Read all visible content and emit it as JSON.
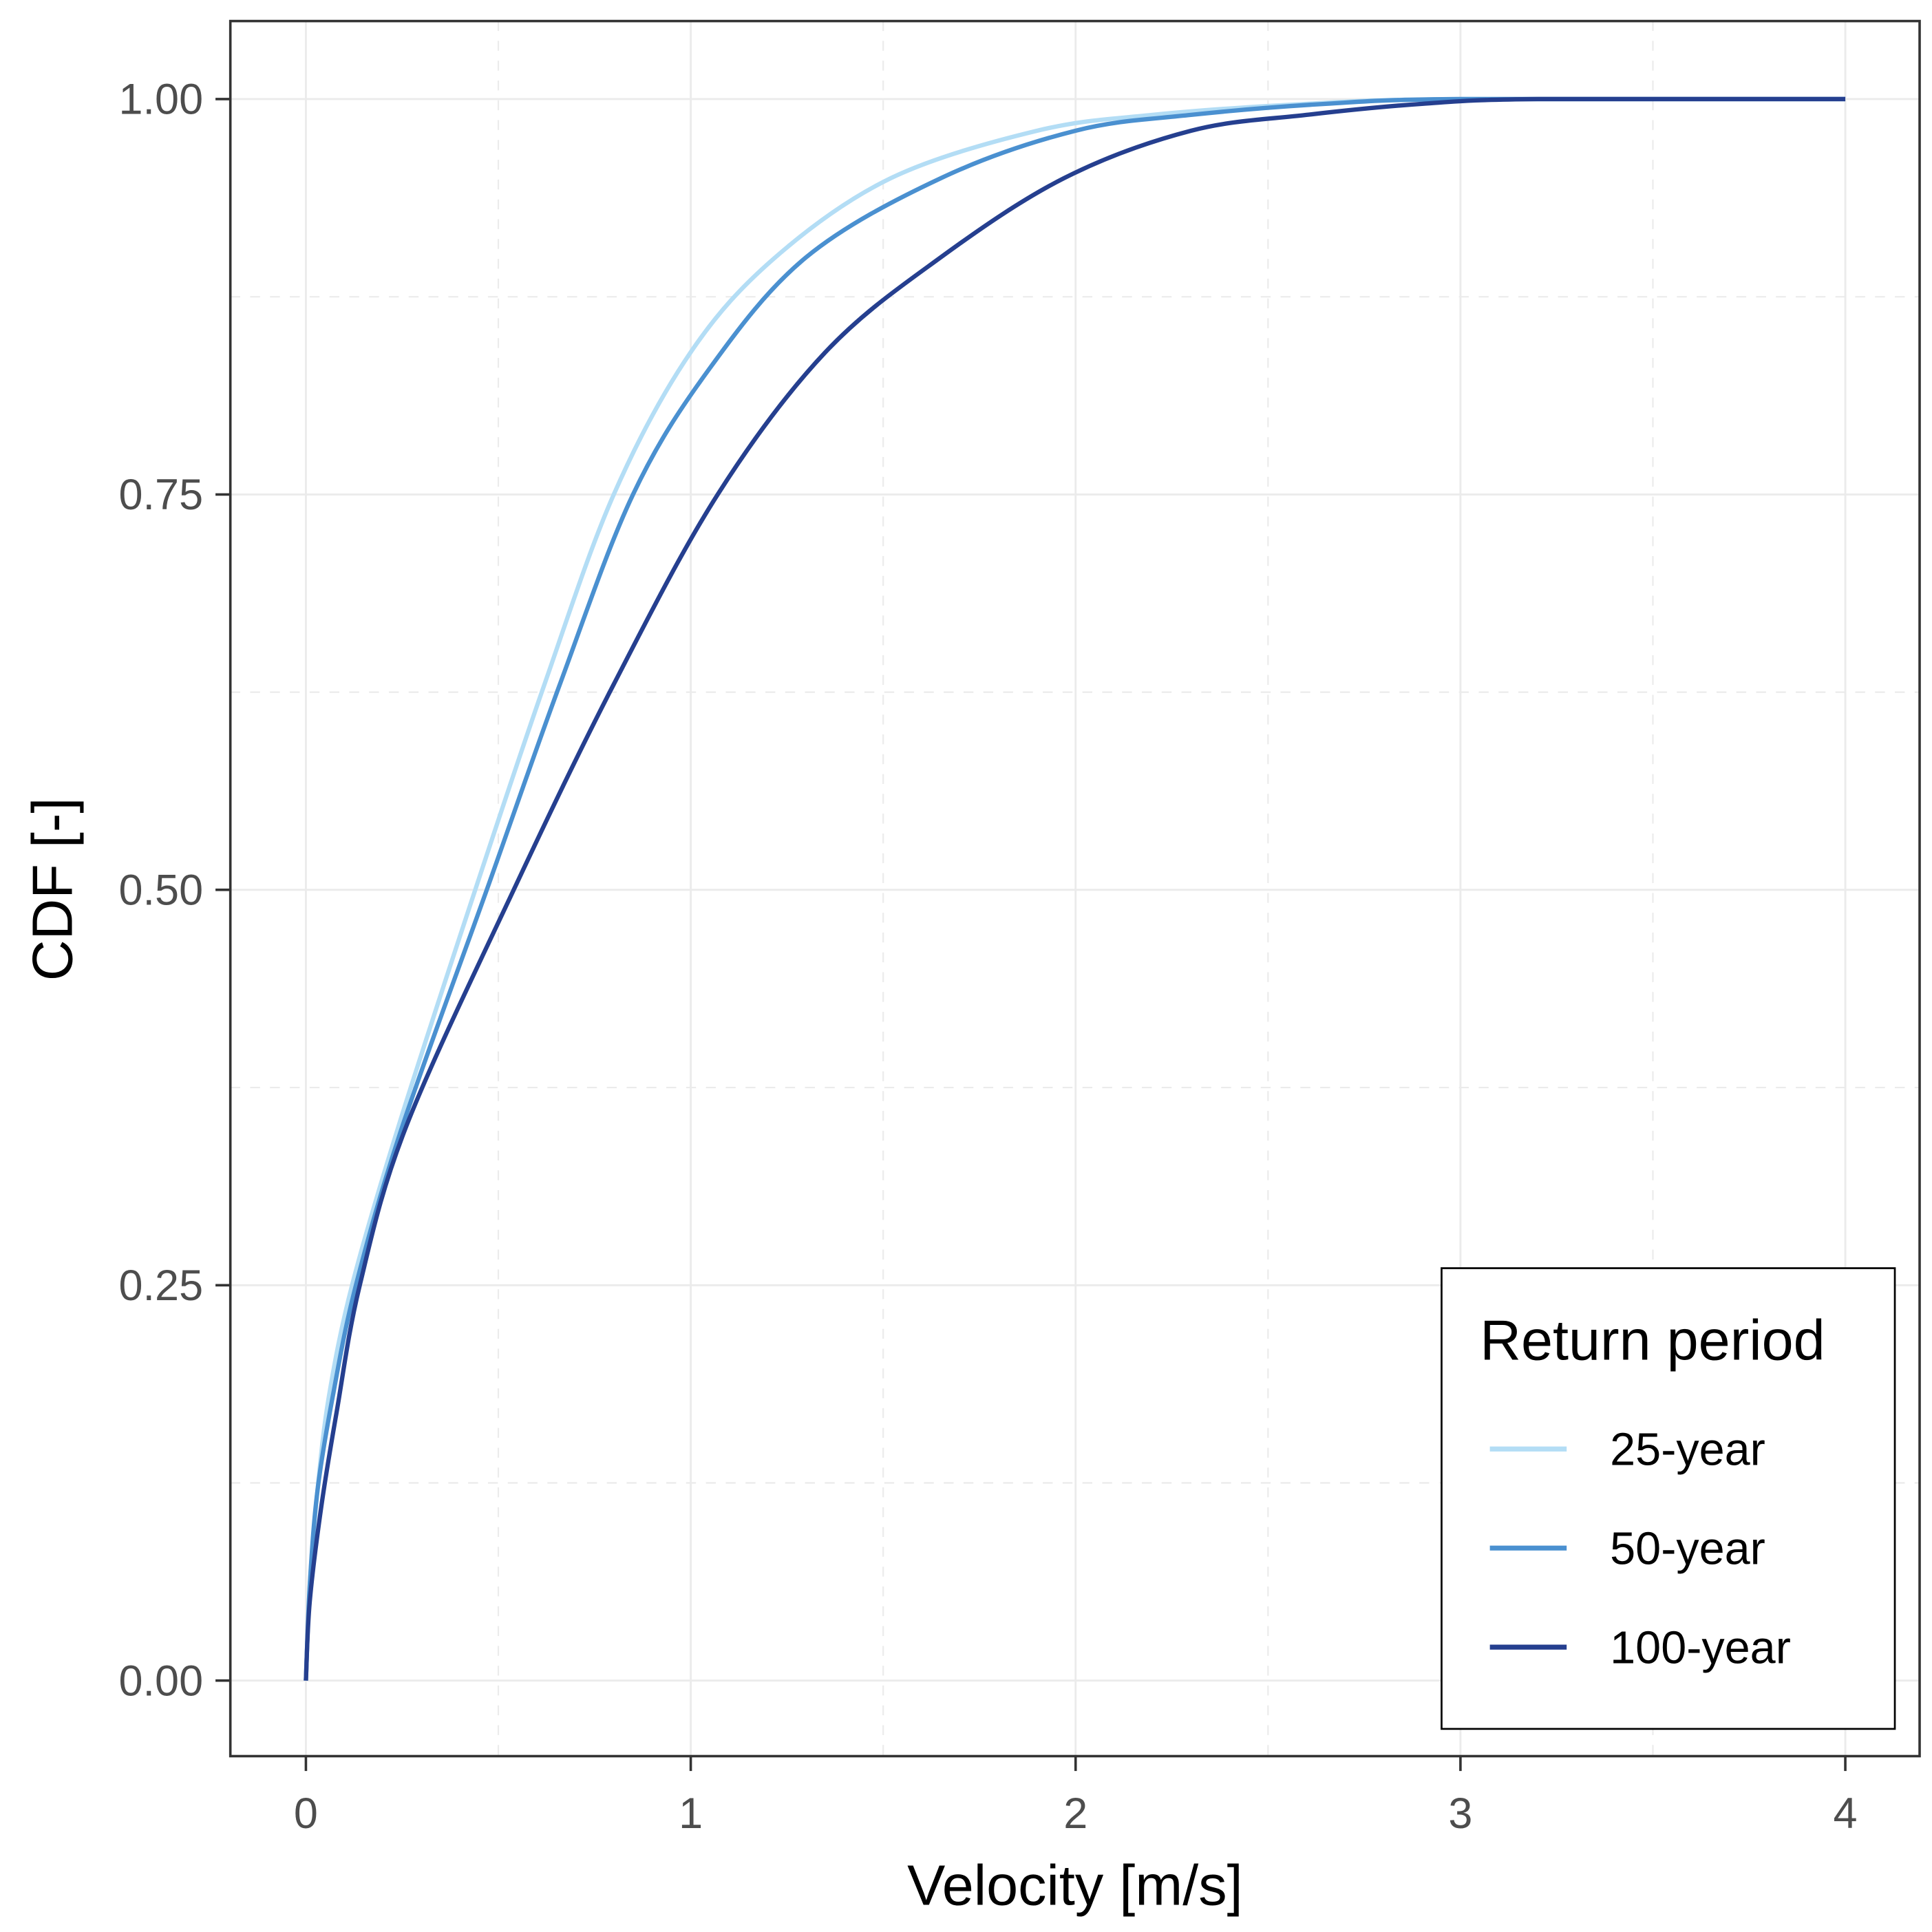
{
  "chart_data": {
    "type": "line",
    "xlabel": "Velocity [m/s]",
    "ylabel": "CDF [-]",
    "xlim": [
      -0.2,
      4.2
    ],
    "ylim": [
      -0.05,
      1.05
    ],
    "xticks": [
      "0",
      "1",
      "2",
      "3",
      "4"
    ],
    "yticks": [
      "0.00",
      "0.25",
      "0.50",
      "0.75",
      "1.00"
    ],
    "grid": true,
    "legend": {
      "title": "Return period",
      "placement": "bottom-right"
    },
    "series": [
      {
        "name": "25-year",
        "color": "#b3ddf5",
        "x": [
          0,
          0.01,
          0.03,
          0.06,
          0.12,
          0.24,
          0.44,
          0.62,
          0.8,
          1.0,
          1.22,
          1.52,
          1.9,
          2.2,
          2.6,
          3.0,
          4.0
        ],
        "y": [
          0,
          0.06,
          0.12,
          0.18,
          0.25,
          0.35,
          0.5,
          0.63,
          0.75,
          0.84,
          0.9,
          0.95,
          0.98,
          0.99,
          0.997,
          1.0,
          1.0
        ]
      },
      {
        "name": "50-year",
        "color": "#4a90d0",
        "x": [
          0,
          0.01,
          0.03,
          0.07,
          0.13,
          0.25,
          0.47,
          0.66,
          0.85,
          1.05,
          1.3,
          1.65,
          2.0,
          2.3,
          2.65,
          3.0,
          4.0
        ],
        "y": [
          0,
          0.06,
          0.12,
          0.18,
          0.25,
          0.35,
          0.5,
          0.63,
          0.75,
          0.83,
          0.9,
          0.95,
          0.98,
          0.99,
          0.997,
          1.0,
          1.0
        ]
      },
      {
        "name": "100-year",
        "color": "#253f8f",
        "x": [
          0,
          0.01,
          0.04,
          0.08,
          0.14,
          0.26,
          0.54,
          0.8,
          1.07,
          1.35,
          1.65,
          1.97,
          2.3,
          2.6,
          2.9,
          3.2,
          4.0
        ],
        "y": [
          0,
          0.05,
          0.11,
          0.17,
          0.25,
          0.35,
          0.5,
          0.63,
          0.75,
          0.84,
          0.9,
          0.95,
          0.98,
          0.99,
          0.997,
          1.0,
          1.0
        ]
      }
    ]
  }
}
